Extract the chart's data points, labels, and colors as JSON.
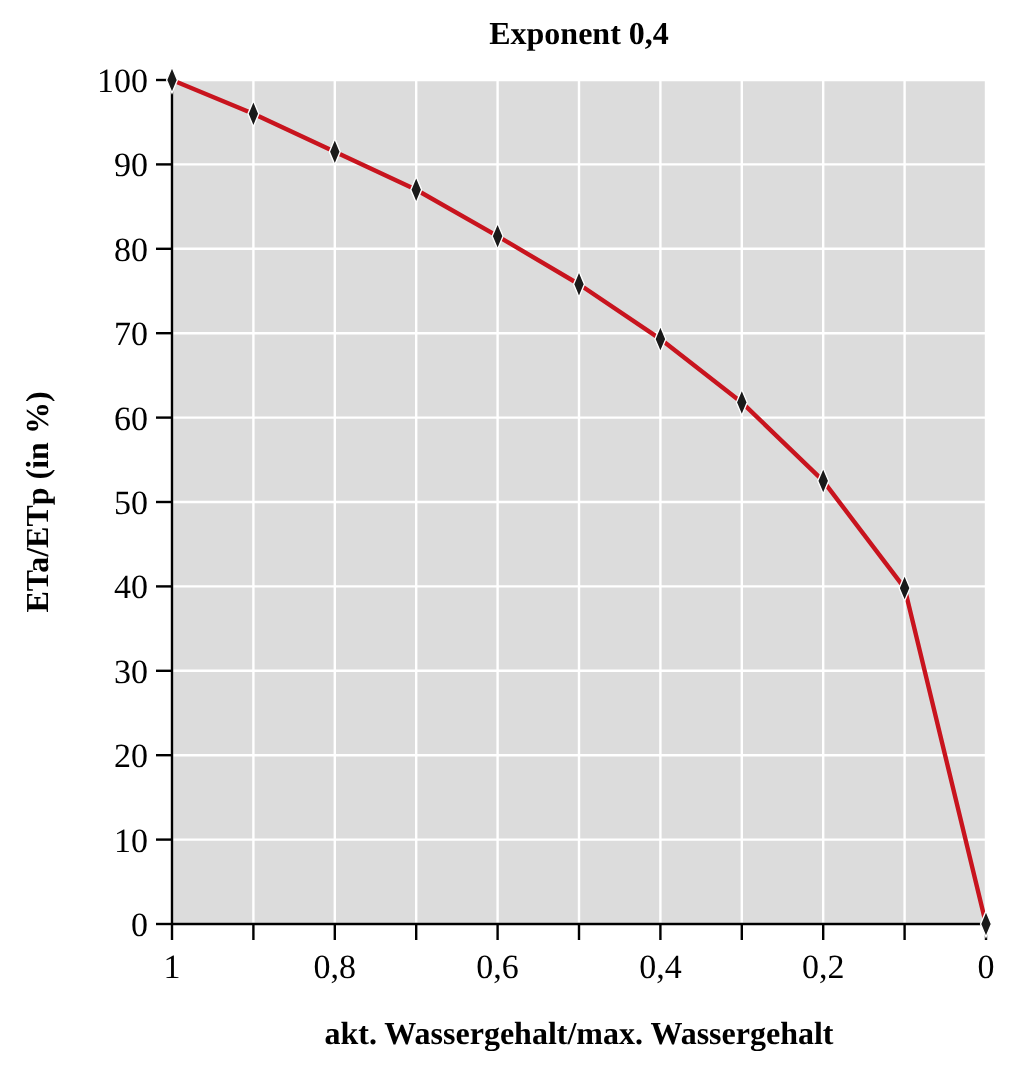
{
  "chart_data": {
    "type": "line",
    "title": "Exponent 0,4",
    "xlabel": "akt. Wassergehalt/max. Wassergehalt",
    "ylabel": "ETa/ETp (in %)",
    "x": [
      1,
      0.9,
      0.8,
      0.7,
      0.6,
      0.5,
      0.4,
      0.3,
      0.2,
      0.1,
      0
    ],
    "series": [
      {
        "color": "#c8141e",
        "values": [
          100,
          96,
          91.5,
          87,
          81.5,
          75.8,
          69.3,
          61.8,
          52.5,
          39.8,
          0
        ]
      }
    ],
    "xlim": [
      1,
      0
    ],
    "ylim": [
      0,
      100
    ],
    "xticks": [
      {
        "value": 1,
        "label": "1"
      },
      {
        "value": 0.9,
        "label": null
      },
      {
        "value": 0.8,
        "label": "0,8"
      },
      {
        "value": 0.7,
        "label": null
      },
      {
        "value": 0.6,
        "label": "0,6"
      },
      {
        "value": 0.5,
        "label": null
      },
      {
        "value": 0.4,
        "label": "0,4"
      },
      {
        "value": 0.3,
        "label": null
      },
      {
        "value": 0.2,
        "label": "0,2"
      },
      {
        "value": 0.1,
        "label": null
      },
      {
        "value": 0,
        "label": "0"
      }
    ],
    "yticks": [
      0,
      10,
      20,
      30,
      40,
      50,
      60,
      70,
      80,
      90,
      100
    ],
    "grid": true,
    "marker": "diamond",
    "line_style": "solid"
  }
}
